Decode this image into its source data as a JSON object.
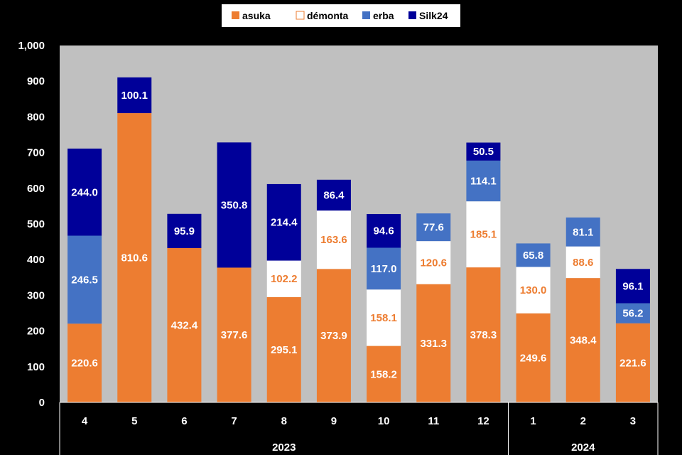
{
  "chart_data": {
    "type": "bar",
    "stacked": true,
    "categories": [
      "4",
      "5",
      "6",
      "7",
      "8",
      "9",
      "10",
      "11",
      "12",
      "1",
      "2",
      "3"
    ],
    "groups": [
      {
        "label": "2023",
        "categories": [
          "4",
          "5",
          "6",
          "7",
          "8",
          "9",
          "10",
          "11",
          "12"
        ]
      },
      {
        "label": "2024",
        "categories": [
          "1",
          "2",
          "3"
        ]
      }
    ],
    "ylim": [
      0,
      1000
    ],
    "yticks": [
      "0",
      "100",
      "200",
      "300",
      "400",
      "500",
      "600",
      "700",
      "800",
      "900",
      "1,000"
    ],
    "grid": false,
    "legend_position": "top",
    "series": [
      {
        "name": "asuka",
        "color": "#ED7D31",
        "label_color": "#FFFFFF",
        "values": [
          220.6,
          810.6,
          432.4,
          377.6,
          295.1,
          373.9,
          158.2,
          331.3,
          378.3,
          249.6,
          348.4,
          221.6
        ],
        "labels": [
          "220.6",
          "810.6",
          "432.4",
          "377.6",
          "295.1",
          "373.9",
          "158.2",
          "331.3",
          "378.3",
          "249.6",
          "348.4",
          "221.6"
        ]
      },
      {
        "name": "démonta",
        "color": "#FFFFFF",
        "label_color": "#ED7D31",
        "values": [
          null,
          null,
          null,
          null,
          102.2,
          163.6,
          158.1,
          120.6,
          185.1,
          130.0,
          88.6,
          null
        ],
        "labels": [
          "",
          "",
          "",
          "",
          "102.2",
          "163.6",
          "158.1",
          "120.6",
          "185.1",
          "130.0",
          "88.6",
          ""
        ]
      },
      {
        "name": "erba",
        "color": "#4472C4",
        "label_color": "#FFFFFF",
        "values": [
          246.5,
          null,
          null,
          null,
          null,
          null,
          117.0,
          77.6,
          114.1,
          65.8,
          81.1,
          56.2
        ],
        "labels": [
          "246.5",
          "",
          "",
          "",
          "",
          "",
          "117.0",
          "77.6",
          "114.1",
          "65.8",
          "81.1",
          "56.2"
        ]
      },
      {
        "name": "Silk24",
        "color": "#000099",
        "label_color": "#FFFFFF",
        "values": [
          244.0,
          100.1,
          95.9,
          350.8,
          214.4,
          86.4,
          94.6,
          null,
          50.5,
          null,
          null,
          96.1
        ],
        "labels": [
          "244.0",
          "100.1",
          "95.9",
          "350.8",
          "214.4",
          "86.4",
          "94.6",
          "",
          "50.5",
          "",
          "",
          "96.1"
        ]
      }
    ],
    "colors": {
      "plot_background": "#C0C0C0",
      "page_background": "#000000"
    }
  }
}
